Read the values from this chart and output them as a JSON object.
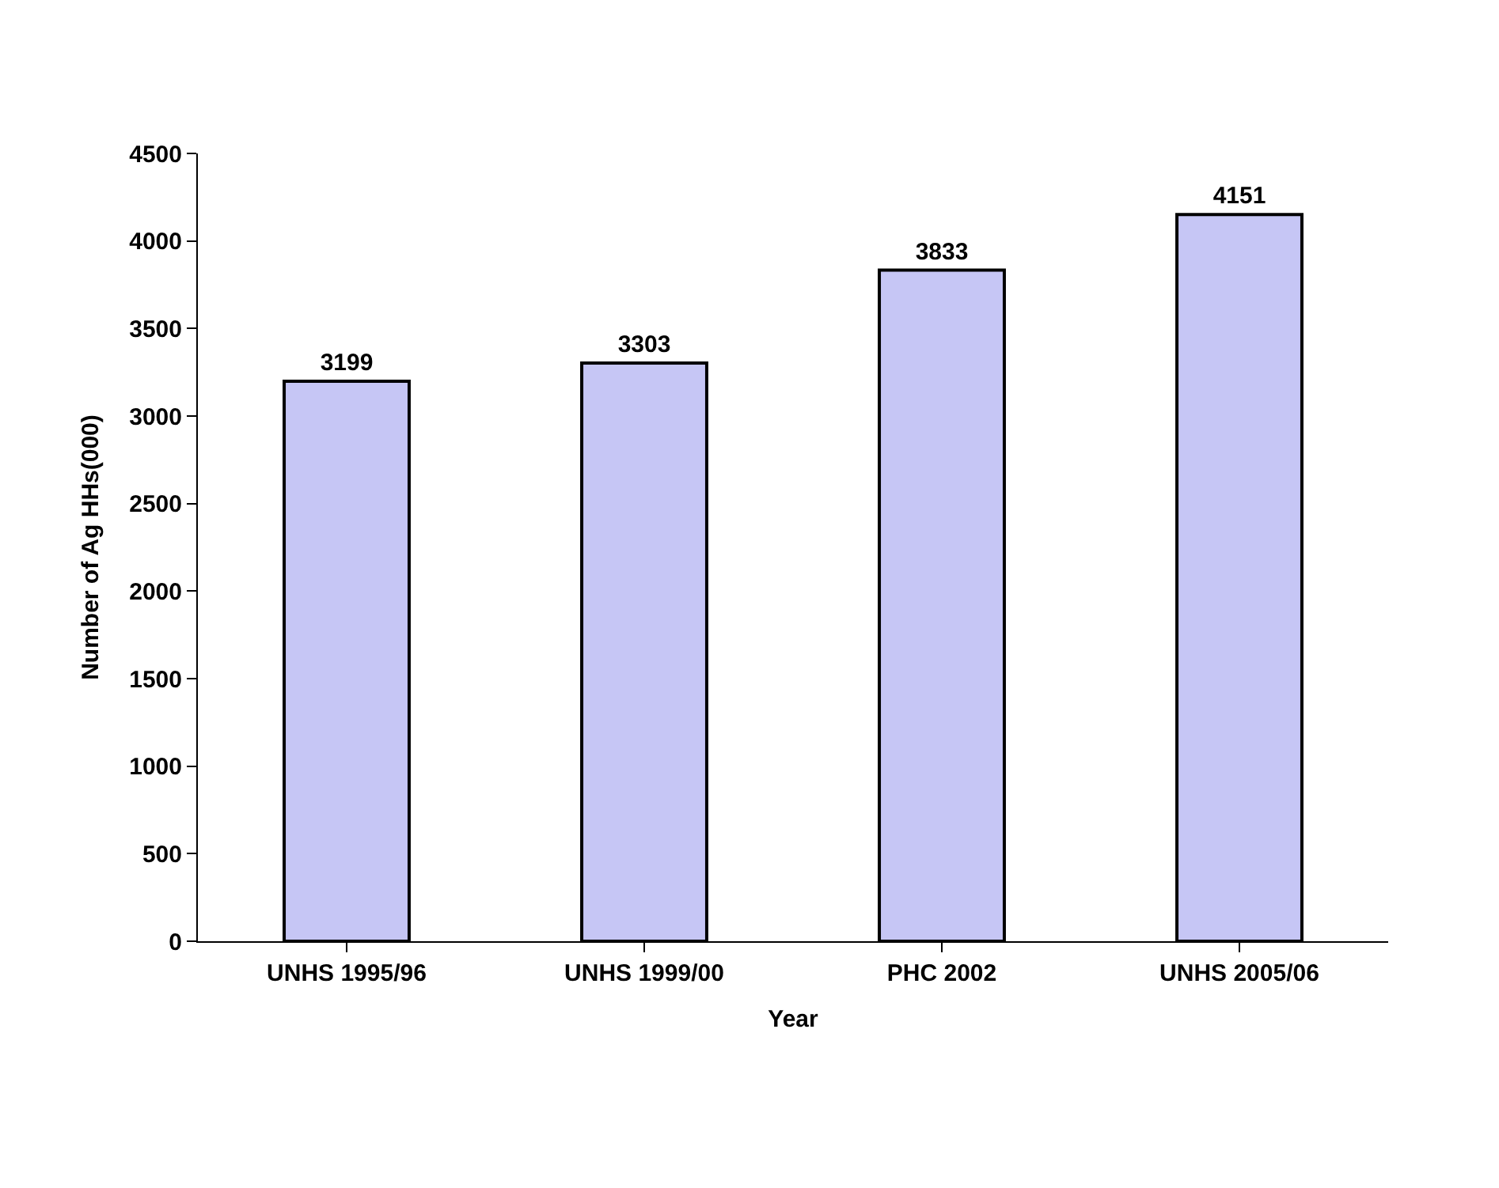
{
  "chart_data": {
    "type": "bar",
    "categories": [
      "UNHS 1995/96",
      "UNHS 1999/00",
      "PHC 2002",
      "UNHS 2005/06"
    ],
    "values": [
      3199,
      3303,
      3833,
      4151
    ],
    "color": "#c6c6f5",
    "xlabel": "Year",
    "ylabel": "Number of Ag HHs(000)",
    "ylim": [
      0,
      4500
    ],
    "yticks": [
      0,
      500,
      1000,
      1500,
      2000,
      2500,
      3000,
      3500,
      4000,
      4500
    ],
    "data_labels": true
  }
}
